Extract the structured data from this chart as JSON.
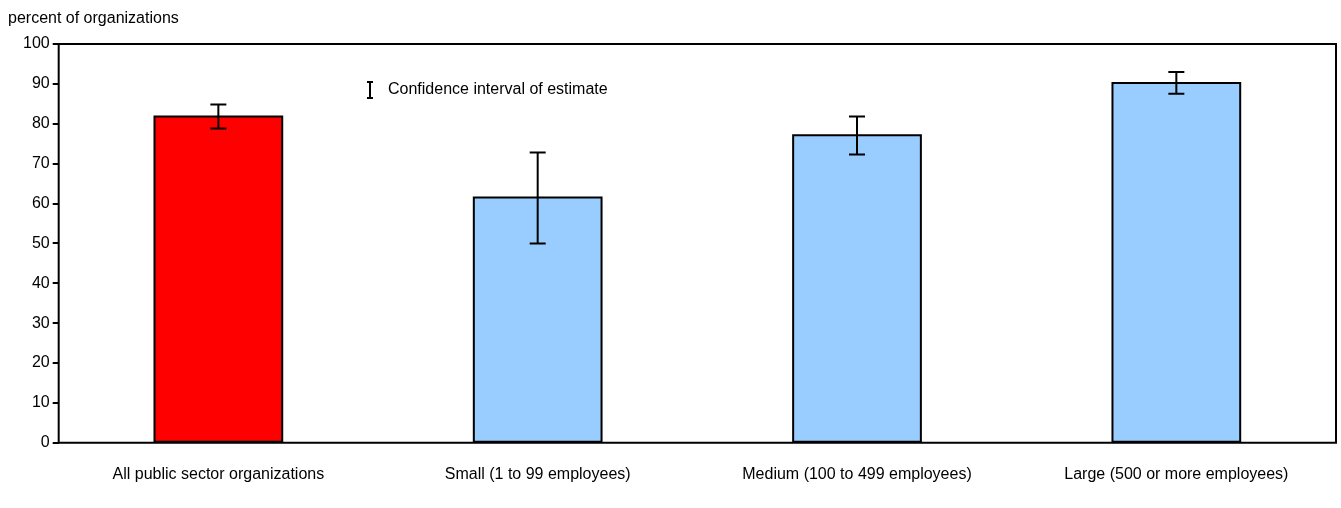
{
  "chart_data": {
    "type": "bar",
    "ylabel": "percent of organizations",
    "categories": [
      "All public sector organizations",
      "Small (1 to 99 employees)",
      "Medium (100 to 499 employees)",
      "Large (500 or more employees)"
    ],
    "values": [
      81.8,
      61.5,
      77.1,
      90.2
    ],
    "colors": [
      "#ff0000",
      "#99ccff",
      "#99ccff",
      "#99ccff"
    ],
    "errors": [
      [
        78.8,
        84.8
      ],
      [
        50.0,
        72.8
      ],
      [
        72.3,
        81.8
      ],
      [
        87.5,
        93.0
      ]
    ],
    "ylim": [
      0,
      100
    ],
    "yticks": [
      0,
      10,
      20,
      30,
      40,
      50,
      60,
      70,
      80,
      90,
      100
    ],
    "grid": false,
    "legend": false,
    "annotations": [
      "Confidence interval of estimate"
    ]
  }
}
